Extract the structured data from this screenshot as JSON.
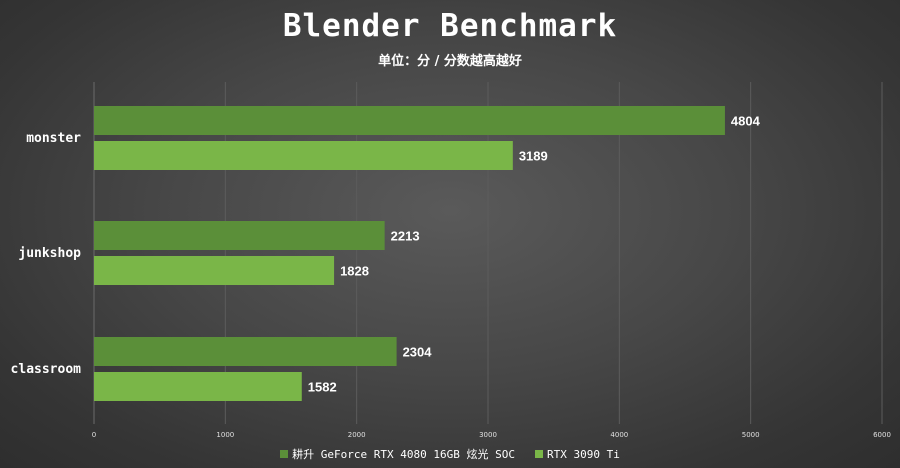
{
  "chart_data": {
    "type": "bar",
    "orientation": "horizontal",
    "title": "Blender Benchmark",
    "subtitle": "单位：分 / 分数越高越好",
    "categories": [
      "monster",
      "junkshop",
      "classroom"
    ],
    "series": [
      {
        "name": "耕升 GeForce RTX 4080 16GB 炫光 SOC",
        "values": [
          4804,
          2213,
          2304
        ],
        "color": "#5b8f39"
      },
      {
        "name": "RTX 3090 Ti",
        "values": [
          3189,
          1828,
          1582
        ],
        "color": "#7ab648"
      }
    ],
    "xlim": [
      0,
      6000
    ],
    "xticks": [
      0,
      1000,
      2000,
      3000,
      4000,
      5000,
      6000
    ],
    "grid": true,
    "legend_position": "bottom",
    "background": "#474747",
    "grid_color": "#5c5c5c"
  }
}
